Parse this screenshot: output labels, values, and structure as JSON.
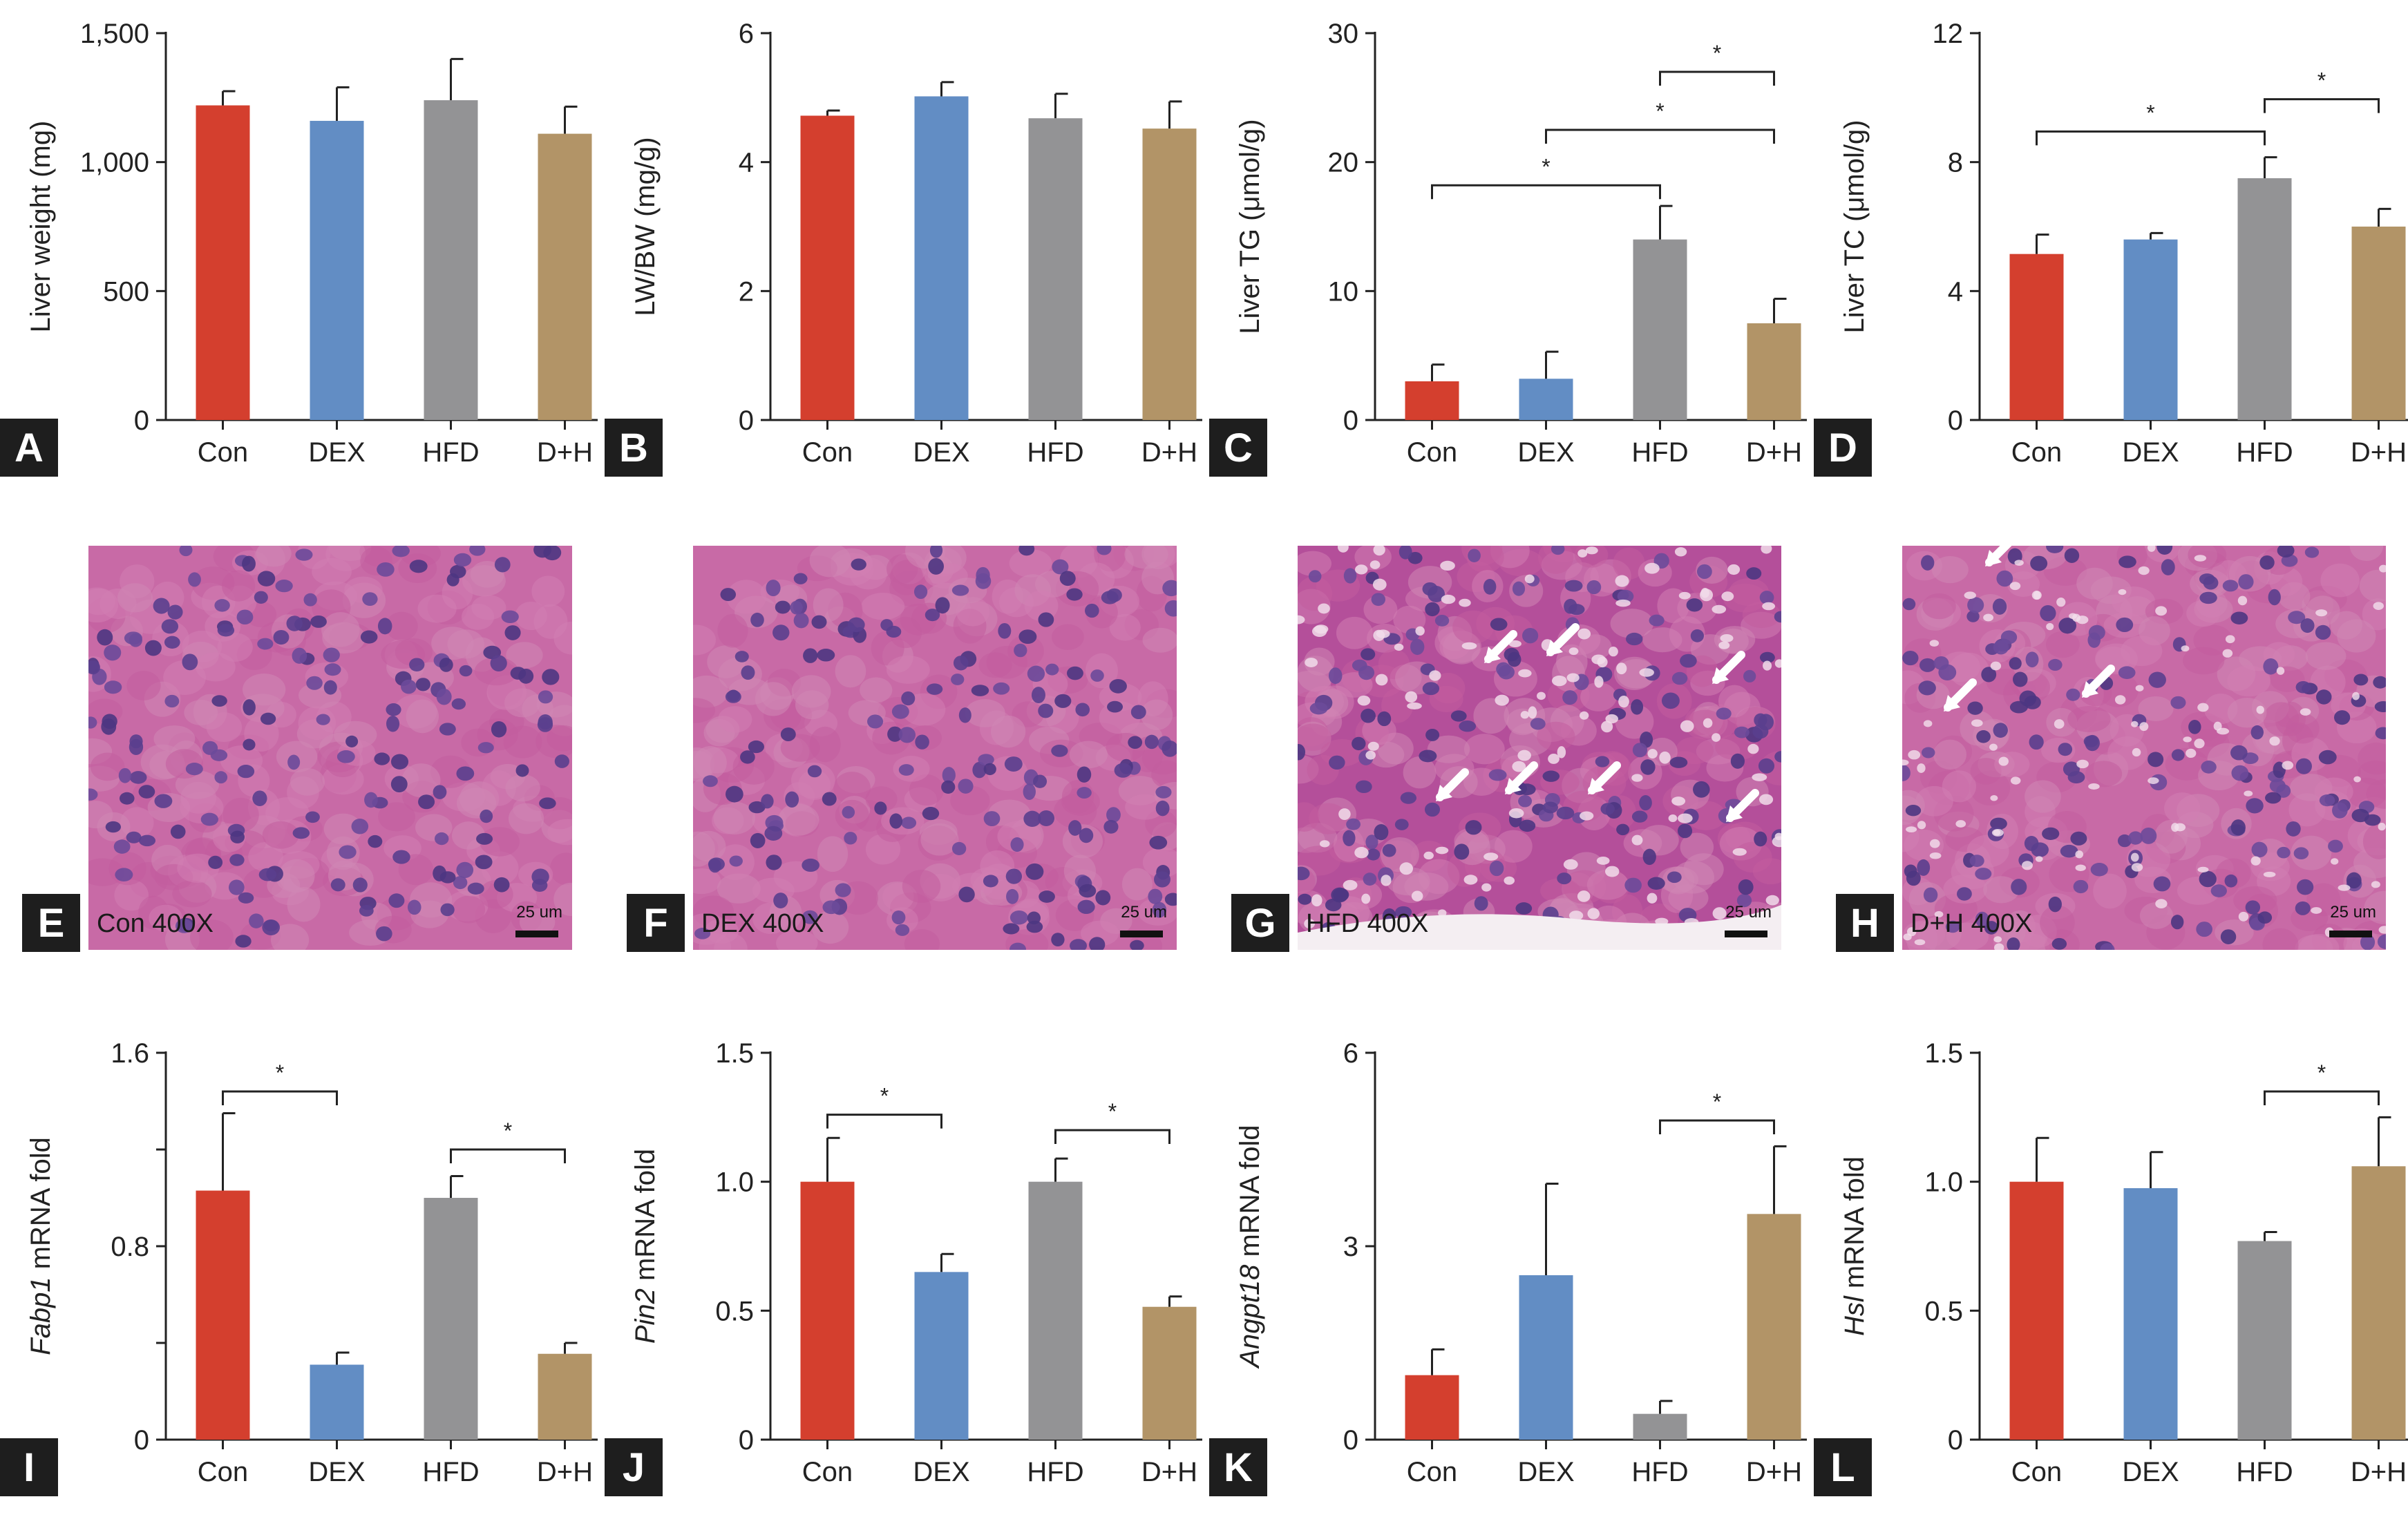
{
  "colors": {
    "Con": "#d43f2e",
    "DEX": "#628dc4",
    "HFD": "#939395",
    "D+H": "#b29467",
    "error": "#222222"
  },
  "chart_data": [
    {
      "id": "A",
      "type": "bar",
      "label": "A",
      "categories": [
        "Con",
        "DEX",
        "HFD",
        "D+H"
      ],
      "values": [
        1220,
        1160,
        1240,
        1110
      ],
      "errors": [
        55,
        130,
        160,
        105
      ],
      "ylabel": "Liver weight (mg)",
      "ylim": [
        0,
        1500
      ],
      "yticks": [
        0,
        500,
        1000,
        1500
      ],
      "yticklabels": [
        "0",
        "500",
        "1,000",
        "1,500"
      ],
      "significance": []
    },
    {
      "id": "B",
      "type": "bar",
      "label": "B",
      "categories": [
        "Con",
        "DEX",
        "HFD",
        "D+H"
      ],
      "values": [
        4.72,
        5.02,
        4.68,
        4.52
      ],
      "errors": [
        0.08,
        0.22,
        0.38,
        0.42
      ],
      "ylabel": "LW/BW (mg/g)",
      "ylim": [
        0,
        6
      ],
      "yticks": [
        0,
        2,
        4,
        6
      ],
      "yticklabels": [
        "0",
        "2",
        "4",
        "6"
      ],
      "significance": []
    },
    {
      "id": "C",
      "type": "bar",
      "label": "C",
      "categories": [
        "Con",
        "DEX",
        "HFD",
        "D+H"
      ],
      "values": [
        3.0,
        3.2,
        14.0,
        7.5
      ],
      "errors": [
        1.3,
        2.1,
        2.6,
        1.9
      ],
      "ylabel": "Liver TG (μmol/g)",
      "ylim": [
        0,
        30
      ],
      "yticks": [
        0,
        10,
        20,
        30
      ],
      "yticklabels": [
        "0",
        "10",
        "20",
        "30"
      ],
      "significance": [
        {
          "from": 0,
          "to": 2,
          "y": 18.2,
          "label": "*"
        },
        {
          "from": 1,
          "to": 3,
          "y": 22.5,
          "label": "*"
        },
        {
          "from": 2,
          "to": 3,
          "y": 27.0,
          "label": "*"
        }
      ]
    },
    {
      "id": "D",
      "type": "bar",
      "label": "D",
      "categories": [
        "Con",
        "DEX",
        "HFD",
        "D+H"
      ],
      "values": [
        5.15,
        5.6,
        7.5,
        6.0
      ],
      "errors": [
        0.6,
        0.2,
        0.65,
        0.55
      ],
      "ylabel": "Liver TC (μmol/g)",
      "ylim": [
        0,
        12
      ],
      "yticks": [
        0,
        4,
        8,
        12
      ],
      "yticklabels": [
        "0",
        "4",
        "8",
        "12"
      ],
      "significance": [
        {
          "from": 0,
          "to": 2,
          "y": 8.95,
          "label": "*"
        },
        {
          "from": 2,
          "to": 3,
          "y": 9.95,
          "label": "*"
        }
      ]
    },
    {
      "id": "I",
      "type": "bar",
      "label": "I",
      "categories": [
        "Con",
        "DEX",
        "HFD",
        "D+H"
      ],
      "values": [
        1.03,
        0.31,
        1.0,
        0.355
      ],
      "errors": [
        0.32,
        0.05,
        0.09,
        0.045
      ],
      "ylabel_italic": "Fabp1",
      "ylabel": " mRNA fold",
      "ylim": [
        0,
        1.6
      ],
      "yticks": [
        0,
        0.4,
        0.8,
        1.2,
        1.6
      ],
      "yticklabels": [
        "0",
        "",
        "0.8",
        "",
        "1.6"
      ],
      "significance": [
        {
          "from": 0,
          "to": 1,
          "y": 1.44,
          "label": "*"
        },
        {
          "from": 2,
          "to": 3,
          "y": 1.2,
          "label": "*"
        }
      ]
    },
    {
      "id": "J",
      "type": "bar",
      "label": "J",
      "categories": [
        "Con",
        "DEX",
        "HFD",
        "D+H"
      ],
      "values": [
        1.0,
        0.65,
        1.0,
        0.515
      ],
      "errors": [
        0.17,
        0.07,
        0.09,
        0.04
      ],
      "ylabel_italic": "Pin2",
      "ylabel": " mRNA fold",
      "ylim": [
        0,
        1.5
      ],
      "yticks": [
        0,
        0.5,
        1.0,
        1.5
      ],
      "yticklabels": [
        "0",
        "0.5",
        "1.0",
        "1.5"
      ],
      "significance": [
        {
          "from": 0,
          "to": 1,
          "y": 1.26,
          "label": "*"
        },
        {
          "from": 2,
          "to": 3,
          "y": 1.2,
          "label": "*"
        }
      ]
    },
    {
      "id": "K",
      "type": "bar",
      "label": "K",
      "categories": [
        "Con",
        "DEX",
        "HFD",
        "D+H"
      ],
      "values": [
        1.0,
        2.55,
        0.4,
        3.5
      ],
      "errors": [
        0.4,
        1.42,
        0.2,
        1.05
      ],
      "ylabel_italic": "Angpt18",
      "ylabel": " mRNA fold",
      "ylim": [
        0,
        6
      ],
      "yticks": [
        0,
        3,
        6
      ],
      "yticklabels": [
        "0",
        "3",
        "6"
      ],
      "significance": [
        {
          "from": 2,
          "to": 3,
          "y": 4.95,
          "label": "*"
        }
      ]
    },
    {
      "id": "L",
      "type": "bar",
      "label": "L",
      "categories": [
        "Con",
        "DEX",
        "HFD",
        "D+H"
      ],
      "values": [
        1.0,
        0.975,
        0.77,
        1.06
      ],
      "errors": [
        0.17,
        0.14,
        0.035,
        0.19
      ],
      "ylabel_italic": "Hsl",
      "ylabel": " mRNA fold",
      "ylim": [
        0,
        1.5
      ],
      "yticks": [
        0,
        0.5,
        1.0,
        1.5
      ],
      "yticklabels": [
        "0",
        "0.5",
        "1.0",
        "1.5"
      ],
      "significance": [
        {
          "from": 2,
          "to": 3,
          "y": 1.35,
          "label": "*"
        }
      ]
    }
  ],
  "micrographs": [
    {
      "label": "E",
      "caption": "Con 400X",
      "scale": "25 um",
      "arrows": []
    },
    {
      "label": "F",
      "caption": "DEX 400X",
      "scale": "25 um",
      "arrows": []
    },
    {
      "label": "G",
      "caption": "HFD 400X",
      "scale": "25 um",
      "arrows": [
        "lipid-droplet",
        "lipid-droplet",
        "lipid-droplet",
        "lipid-droplet",
        "lipid-droplet",
        "lipid-droplet",
        "lipid-droplet"
      ]
    },
    {
      "label": "H",
      "caption": "D+H 400X",
      "scale": "25 um",
      "arrows": [
        "lipid-droplet",
        "lipid-droplet",
        "lipid-droplet"
      ]
    }
  ]
}
